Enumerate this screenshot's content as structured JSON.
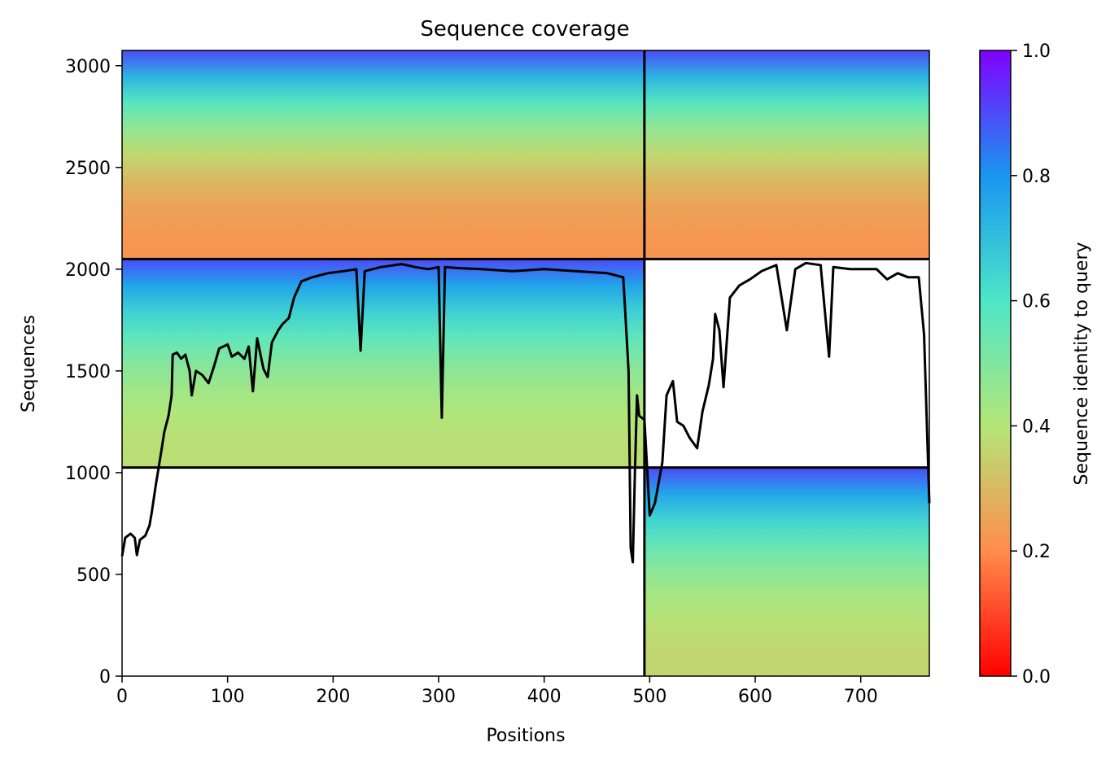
{
  "chart_data": {
    "type": "heatmap",
    "title": "Sequence coverage",
    "xlabel": "Positions",
    "ylabel": "Sequences",
    "xlim": [
      0,
      765
    ],
    "ylim": [
      0,
      3075
    ],
    "x_ticks": [
      0,
      100,
      200,
      300,
      400,
      500,
      600,
      700
    ],
    "y_ticks": [
      0,
      500,
      1000,
      1500,
      2000,
      2500,
      3000
    ],
    "colorbar": {
      "label": "Sequence identity to query",
      "colormap": "rainbow_r",
      "range": [
        0,
        1
      ],
      "ticks": [
        "0.0",
        "0.2",
        "0.4",
        "0.6",
        "0.8",
        "1.0"
      ],
      "stops": [
        {
          "v": 0.0,
          "color": "#ff0000"
        },
        {
          "v": 0.2,
          "color": "#ff8c4d"
        },
        {
          "v": 0.4,
          "color": "#b4e678"
        },
        {
          "v": 0.6,
          "color": "#4de6c8"
        },
        {
          "v": 0.8,
          "color": "#1996f0"
        },
        {
          "v": 1.0,
          "color": "#8000ff"
        }
      ]
    },
    "blocks": [
      {
        "name": "chain-1-only",
        "x": [
          0,
          495
        ],
        "y": [
          1025,
          2050
        ],
        "identity_bottom": 0.38,
        "identity_top": 0.9
      },
      {
        "name": "chain-2-only",
        "x": [
          495,
          765
        ],
        "y": [
          0,
          1025
        ],
        "identity_bottom": 0.36,
        "identity_top": 0.9
      },
      {
        "name": "paired-left",
        "x": [
          0,
          495
        ],
        "y": [
          2050,
          3075
        ],
        "identity_bottom": 0.22,
        "identity_top": 0.9
      },
      {
        "name": "paired-right",
        "x": [
          495,
          765
        ],
        "y": [
          2050,
          3075
        ],
        "identity_bottom": 0.22,
        "identity_top": 0.9
      }
    ],
    "separators": {
      "vertical_x": 495,
      "horizontal_y": [
        1025,
        2050
      ]
    },
    "coverage_line": {
      "color": "#000000",
      "points": [
        [
          0,
          590
        ],
        [
          3,
          680
        ],
        [
          8,
          700
        ],
        [
          12,
          680
        ],
        [
          14,
          595
        ],
        [
          17,
          670
        ],
        [
          22,
          690
        ],
        [
          26,
          740
        ],
        [
          28,
          800
        ],
        [
          32,
          940
        ],
        [
          37,
          1100
        ],
        [
          40,
          1200
        ],
        [
          44,
          1280
        ],
        [
          47,
          1380
        ],
        [
          48,
          1580
        ],
        [
          52,
          1590
        ],
        [
          56,
          1560
        ],
        [
          60,
          1580
        ],
        [
          64,
          1500
        ],
        [
          66,
          1380
        ],
        [
          70,
          1500
        ],
        [
          76,
          1480
        ],
        [
          82,
          1440
        ],
        [
          87,
          1520
        ],
        [
          92,
          1610
        ],
        [
          100,
          1630
        ],
        [
          104,
          1570
        ],
        [
          110,
          1590
        ],
        [
          116,
          1560
        ],
        [
          120,
          1620
        ],
        [
          124,
          1400
        ],
        [
          128,
          1660
        ],
        [
          134,
          1510
        ],
        [
          138,
          1470
        ],
        [
          142,
          1640
        ],
        [
          148,
          1700
        ],
        [
          152,
          1730
        ],
        [
          158,
          1760
        ],
        [
          163,
          1860
        ],
        [
          170,
          1940
        ],
        [
          180,
          1960
        ],
        [
          195,
          1980
        ],
        [
          210,
          1990
        ],
        [
          222,
          2000
        ],
        [
          226,
          1600
        ],
        [
          230,
          1990
        ],
        [
          245,
          2010
        ],
        [
          265,
          2025
        ],
        [
          278,
          2010
        ],
        [
          290,
          2000
        ],
        [
          300,
          2010
        ],
        [
          303,
          1270
        ],
        [
          306,
          2010
        ],
        [
          320,
          2005
        ],
        [
          340,
          2000
        ],
        [
          370,
          1990
        ],
        [
          400,
          2000
        ],
        [
          430,
          1990
        ],
        [
          460,
          1980
        ],
        [
          475,
          1960
        ],
        [
          480,
          1500
        ],
        [
          482,
          630
        ],
        [
          484,
          560
        ],
        [
          486,
          1000
        ],
        [
          488,
          1380
        ],
        [
          490,
          1280
        ],
        [
          495,
          1260
        ],
        [
          500,
          790
        ],
        [
          505,
          850
        ],
        [
          512,
          1050
        ],
        [
          516,
          1380
        ],
        [
          522,
          1450
        ],
        [
          526,
          1250
        ],
        [
          532,
          1230
        ],
        [
          538,
          1170
        ],
        [
          545,
          1120
        ],
        [
          550,
          1300
        ],
        [
          556,
          1430
        ],
        [
          560,
          1560
        ],
        [
          562,
          1780
        ],
        [
          566,
          1700
        ],
        [
          570,
          1420
        ],
        [
          576,
          1860
        ],
        [
          585,
          1920
        ],
        [
          595,
          1950
        ],
        [
          606,
          1990
        ],
        [
          620,
          2020
        ],
        [
          630,
          1700
        ],
        [
          638,
          2000
        ],
        [
          648,
          2030
        ],
        [
          662,
          2020
        ],
        [
          670,
          1570
        ],
        [
          674,
          2010
        ],
        [
          690,
          2000
        ],
        [
          715,
          2000
        ],
        [
          725,
          1950
        ],
        [
          735,
          1980
        ],
        [
          745,
          1960
        ],
        [
          755,
          1960
        ],
        [
          760,
          1680
        ],
        [
          765,
          850
        ]
      ]
    }
  }
}
